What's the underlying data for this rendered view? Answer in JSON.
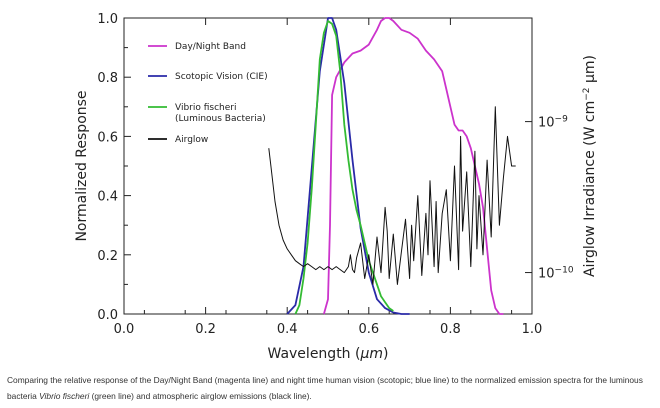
{
  "chart_data": {
    "type": "line",
    "xlabel_text": "Wavelength (",
    "xlabel_unit": "μm",
    "xlabel_close": ")",
    "ylabel": "Normalized Response",
    "ylabel_right_text": "Airglow Irradiance (W cm",
    "ylabel_right_exp": "−2",
    "ylabel_right_unit": " μm)",
    "xlim": [
      0.0,
      1.0
    ],
    "ylim": [
      0.0,
      1.0
    ],
    "x_ticks": [
      "0.0",
      "0.2",
      "0.4",
      "0.6",
      "0.8",
      "1.0"
    ],
    "y_ticks": [
      "0.0",
      "0.2",
      "0.4",
      "0.6",
      "0.8",
      "1.0"
    ],
    "right_ticks": [
      {
        "base": "10",
        "exp": "−10",
        "level": 0.14
      },
      {
        "base": "10",
        "exp": "−9",
        "level": 0.65
      }
    ],
    "legend_placement": "top-right",
    "series": [
      {
        "name": "Day/Night Band",
        "color": "#cc33cc",
        "x": [
          0.49,
          0.5,
          0.505,
          0.51,
          0.52,
          0.54,
          0.56,
          0.58,
          0.6,
          0.62,
          0.63,
          0.64,
          0.65,
          0.66,
          0.68,
          0.7,
          0.72,
          0.74,
          0.76,
          0.78,
          0.79,
          0.8,
          0.81,
          0.82,
          0.83,
          0.84,
          0.85,
          0.86,
          0.87,
          0.88,
          0.89,
          0.9,
          0.91,
          0.92,
          0.93
        ],
        "y": [
          0.0,
          0.05,
          0.3,
          0.74,
          0.8,
          0.85,
          0.88,
          0.89,
          0.91,
          0.96,
          0.99,
          1.0,
          1.0,
          0.99,
          0.96,
          0.95,
          0.93,
          0.89,
          0.86,
          0.82,
          0.76,
          0.7,
          0.64,
          0.62,
          0.62,
          0.6,
          0.56,
          0.5,
          0.44,
          0.36,
          0.22,
          0.08,
          0.02,
          0.0,
          0.0
        ]
      },
      {
        "name": "Scotopic Vision (CIE)",
        "color": "#2a2aa8",
        "x": [
          0.4,
          0.42,
          0.44,
          0.46,
          0.48,
          0.5,
          0.51,
          0.52,
          0.54,
          0.56,
          0.58,
          0.6,
          0.62,
          0.64,
          0.66,
          0.68,
          0.7
        ],
        "y": [
          0.0,
          0.03,
          0.16,
          0.49,
          0.82,
          1.0,
          1.0,
          0.96,
          0.78,
          0.52,
          0.29,
          0.14,
          0.05,
          0.02,
          0.005,
          0.0,
          0.0
        ]
      },
      {
        "name": "Vibrio fischeri",
        "name_line2": "(Luminous Bacteria)",
        "color": "#33bb33",
        "x": [
          0.42,
          0.43,
          0.44,
          0.45,
          0.46,
          0.47,
          0.48,
          0.49,
          0.5,
          0.51,
          0.52,
          0.53,
          0.54,
          0.55,
          0.56,
          0.57,
          0.58,
          0.59,
          0.6,
          0.61,
          0.62,
          0.63,
          0.64,
          0.65,
          0.66
        ],
        "y": [
          0.0,
          0.03,
          0.12,
          0.24,
          0.42,
          0.64,
          0.86,
          0.95,
          0.99,
          0.98,
          0.94,
          0.82,
          0.64,
          0.52,
          0.42,
          0.35,
          0.3,
          0.24,
          0.18,
          0.14,
          0.1,
          0.06,
          0.04,
          0.02,
          0.01
        ]
      },
      {
        "name": "Airglow",
        "color": "#111111",
        "x": [
          0.355,
          0.36,
          0.37,
          0.38,
          0.39,
          0.4,
          0.41,
          0.42,
          0.43,
          0.44,
          0.45,
          0.46,
          0.47,
          0.48,
          0.49,
          0.5,
          0.51,
          0.52,
          0.53,
          0.54,
          0.55,
          0.555,
          0.56,
          0.565,
          0.57,
          0.58,
          0.59,
          0.6,
          0.61,
          0.62,
          0.63,
          0.64,
          0.645,
          0.65,
          0.66,
          0.67,
          0.68,
          0.69,
          0.7,
          0.705,
          0.71,
          0.72,
          0.73,
          0.74,
          0.745,
          0.75,
          0.76,
          0.765,
          0.77,
          0.78,
          0.79,
          0.8,
          0.81,
          0.82,
          0.825,
          0.83,
          0.84,
          0.85,
          0.86,
          0.865,
          0.87,
          0.88,
          0.89,
          0.9,
          0.91,
          0.92,
          0.93,
          0.94,
          0.95,
          0.96
        ],
        "y": [
          0.56,
          0.5,
          0.38,
          0.3,
          0.25,
          0.22,
          0.2,
          0.18,
          0.17,
          0.16,
          0.17,
          0.16,
          0.15,
          0.16,
          0.15,
          0.16,
          0.15,
          0.16,
          0.15,
          0.14,
          0.16,
          0.2,
          0.15,
          0.14,
          0.19,
          0.24,
          0.12,
          0.2,
          0.1,
          0.26,
          0.14,
          0.36,
          0.28,
          0.12,
          0.27,
          0.1,
          0.21,
          0.32,
          0.12,
          0.3,
          0.18,
          0.4,
          0.13,
          0.34,
          0.2,
          0.45,
          0.16,
          0.38,
          0.14,
          0.34,
          0.42,
          0.18,
          0.5,
          0.15,
          0.6,
          0.28,
          0.48,
          0.16,
          0.55,
          0.22,
          0.4,
          0.2,
          0.52,
          0.26,
          0.7,
          0.3,
          0.46,
          0.6,
          0.5,
          0.5
        ]
      }
    ]
  },
  "caption": {
    "before": "Comparing the relative response of the Day/Night Band (magenta line) and night time human vision (scotopic; blue line) to the normalized emission spectra for the luminous bacteria ",
    "italic": "Vibrio fischeri",
    "after": " (green line) and atmospheric airglow emissions (black line)."
  }
}
